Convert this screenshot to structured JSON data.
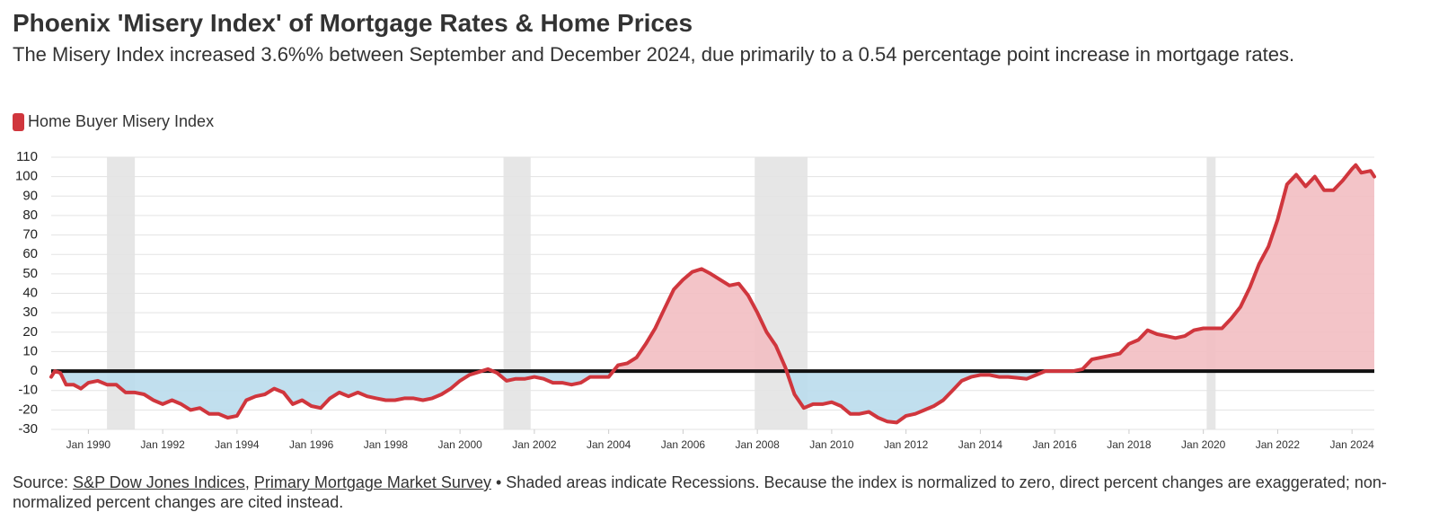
{
  "chart_data": {
    "type": "area",
    "title": "Phoenix 'Misery Index' of Mortgage Rates & Home Prices",
    "subtitle": "The Misery Index increased 3.6%% between September and December 2024, due primarily to a 0.54 percentage point increase in mortgage rates.",
    "source_prefix": "Source:",
    "sources": [
      "S&P Dow Jones Indices",
      "Primary Mortgage Market Survey"
    ],
    "source_separator": ",",
    "note": "• Shaded areas indicate Recessions. Because the index is normalized to zero, direct percent changes are exaggerated; non-normalized percent changes are cited instead.",
    "xlim": [
      1989,
      2024.6
    ],
    "ylim": [
      -30,
      110
    ],
    "yticks": [
      -30,
      -20,
      -10,
      0,
      10,
      20,
      30,
      40,
      50,
      60,
      70,
      80,
      90,
      100,
      110
    ],
    "xticks": [
      {
        "value": 1990,
        "label": "Jan 1990"
      },
      {
        "value": 1992,
        "label": "Jan 1992"
      },
      {
        "value": 1994,
        "label": "Jan 1994"
      },
      {
        "value": 1996,
        "label": "Jan 1996"
      },
      {
        "value": 1998,
        "label": "Jan 1998"
      },
      {
        "value": 2000,
        "label": "Jan 2000"
      },
      {
        "value": 2002,
        "label": "Jan 2002"
      },
      {
        "value": 2004,
        "label": "Jan 2004"
      },
      {
        "value": 2006,
        "label": "Jan 2006"
      },
      {
        "value": 2008,
        "label": "Jan 2008"
      },
      {
        "value": 2010,
        "label": "Jan 2010"
      },
      {
        "value": 2012,
        "label": "Jan 2012"
      },
      {
        "value": 2014,
        "label": "Jan 2014"
      },
      {
        "value": 2016,
        "label": "Jan 2016"
      },
      {
        "value": 2018,
        "label": "Jan 2018"
      },
      {
        "value": 2020,
        "label": "Jan 2020"
      },
      {
        "value": 2022,
        "label": "Jan 2022"
      },
      {
        "value": 2024,
        "label": "Jan 2024"
      }
    ],
    "grid": true,
    "legend": "top-left",
    "recessions": [
      [
        1990.5,
        1991.25
      ],
      [
        2001.17,
        2001.9
      ],
      [
        2007.93,
        2009.35
      ],
      [
        2020.09,
        2020.33
      ]
    ],
    "recession_color": "#e6e6e6",
    "positive_fill": "#f2bec2",
    "negative_fill": "#badcec",
    "x": [
      1989.0,
      1989.1,
      1989.25,
      1989.4,
      1989.6,
      1989.8,
      1990.0,
      1990.25,
      1990.5,
      1990.75,
      1991.0,
      1991.25,
      1991.5,
      1991.75,
      1992.0,
      1992.25,
      1992.5,
      1992.75,
      1993.0,
      1993.25,
      1993.5,
      1993.75,
      1994.0,
      1994.25,
      1994.5,
      1994.75,
      1995.0,
      1995.25,
      1995.5,
      1995.75,
      1996.0,
      1996.25,
      1996.5,
      1996.75,
      1997.0,
      1997.25,
      1997.5,
      1997.75,
      1998.0,
      1998.25,
      1998.5,
      1998.75,
      1999.0,
      1999.25,
      1999.5,
      1999.75,
      2000.0,
      2000.25,
      2000.5,
      2000.75,
      2001.0,
      2001.25,
      2001.5,
      2001.75,
      2002.0,
      2002.25,
      2002.5,
      2002.75,
      2003.0,
      2003.25,
      2003.5,
      2003.75,
      2004.0,
      2004.25,
      2004.5,
      2004.75,
      2005.0,
      2005.25,
      2005.5,
      2005.75,
      2006.0,
      2006.25,
      2006.5,
      2006.75,
      2007.0,
      2007.25,
      2007.5,
      2007.75,
      2008.0,
      2008.25,
      2008.5,
      2008.75,
      2009.0,
      2009.25,
      2009.5,
      2009.75,
      2010.0,
      2010.25,
      2010.5,
      2010.75,
      2011.0,
      2011.25,
      2011.5,
      2011.75,
      2012.0,
      2012.25,
      2012.5,
      2012.75,
      2013.0,
      2013.25,
      2013.5,
      2013.75,
      2014.0,
      2014.25,
      2014.5,
      2014.75,
      2015.0,
      2015.25,
      2015.5,
      2015.75,
      2016.0,
      2016.25,
      2016.5,
      2016.75,
      2017.0,
      2017.25,
      2017.5,
      2017.75,
      2018.0,
      2018.25,
      2018.5,
      2018.75,
      2019.0,
      2019.25,
      2019.5,
      2019.75,
      2020.0,
      2020.25,
      2020.5,
      2020.75,
      2021.0,
      2021.25,
      2021.5,
      2021.75,
      2022.0,
      2022.25,
      2022.5,
      2022.75,
      2023.0,
      2023.25,
      2023.5,
      2023.75,
      2024.0,
      2024.1,
      2024.25,
      2024.5,
      2024.6
    ],
    "series": [
      {
        "name": "Home Buyer Misery Index",
        "color": "#d0363d",
        "values": [
          -3,
          0,
          -1,
          -7,
          -7,
          -9,
          -6,
          -5,
          -7,
          -7,
          -11,
          -11,
          -12,
          -15,
          -17,
          -15,
          -17,
          -20,
          -19,
          -22,
          -22,
          -24,
          -23,
          -15,
          -13,
          -12,
          -9,
          -11,
          -17,
          -15,
          -18,
          -19,
          -14,
          -11,
          -13,
          -11,
          -13,
          -14,
          -15,
          -15,
          -14,
          -14,
          -15,
          -14,
          -12,
          -9,
          -5,
          -2,
          -0.5,
          1,
          -1,
          -5,
          -4,
          -4,
          -3,
          -4,
          -6,
          -6,
          -7,
          -6,
          -3,
          -3,
          -3,
          3,
          4,
          7,
          14,
          22,
          32,
          42,
          47,
          51,
          52.5,
          50,
          47,
          44,
          45,
          39,
          30,
          20,
          13,
          2,
          -12,
          -19,
          -17,
          -17,
          -16,
          -18,
          -22,
          -22,
          -21,
          -24,
          -26,
          -26.5,
          -23,
          -22,
          -20,
          -18,
          -15,
          -10,
          -5,
          -3,
          -2,
          -2,
          -3,
          -3,
          -3.5,
          -4,
          -2,
          0,
          0,
          0,
          0,
          1,
          6,
          7,
          8,
          9,
          14,
          16,
          21,
          19,
          18,
          17,
          18,
          21,
          22,
          22,
          22,
          27,
          33,
          43,
          55,
          64,
          78,
          96,
          101,
          95,
          100,
          93,
          93,
          98,
          104,
          106,
          102,
          103,
          100
        ]
      }
    ]
  }
}
